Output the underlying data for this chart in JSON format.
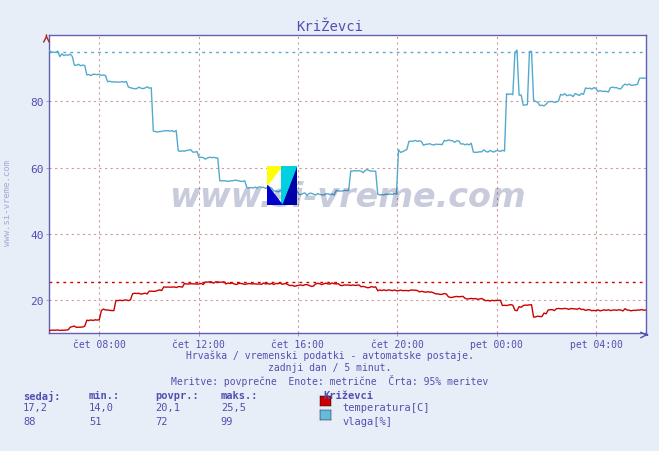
{
  "title": "KriŽevci",
  "bg_color": "#e8eef8",
  "plot_bg_color": "#ffffff",
  "grid_color": "#d0a0a0",
  "ylim": [
    10,
    100
  ],
  "yticks": [
    20,
    40,
    60,
    80
  ],
  "xlabel_color": "#5050b0",
  "ylabel_color": "#5050b0",
  "title_color": "#5050b0",
  "text_color": "#5050b0",
  "xtick_labels": [
    "čet 08:00",
    "čet 12:00",
    "čet 16:00",
    "čet 20:00",
    "pet 00:00",
    "pet 04:00"
  ],
  "temp_color": "#cc0000",
  "humidity_color": "#55aacc",
  "temp_95pct": 25.5,
  "humidity_95pct": 95,
  "subtitle1": "Hrvaška / vremenski podatki - avtomatske postaje.",
  "subtitle2": "zadnji dan / 5 minut.",
  "subtitle3": "Meritve: povprečne  Enote: metrične  Črta: 95% meritev",
  "legend_title": "Križevci",
  "legend_items": [
    {
      "label": "temperatura[C]",
      "color": "#cc0000"
    },
    {
      "label": "vlaga[%]",
      "color": "#66bbdd"
    }
  ],
  "stats_headers": [
    "sedaj:",
    "min.:",
    "povpr.:",
    "maks.:"
  ],
  "stats_temp": [
    "17,2",
    "14,0",
    "20,1",
    "25,5"
  ],
  "stats_humidity": [
    "88",
    "51",
    "72",
    "99"
  ],
  "watermark": "www.si-vreme.com",
  "watermark_color": "#203070",
  "watermark_alpha": 0.25,
  "sidewatermark": "www.si-vreme.com",
  "sidewatermark_color": "#8090c0",
  "sidewatermark_alpha": 0.7
}
